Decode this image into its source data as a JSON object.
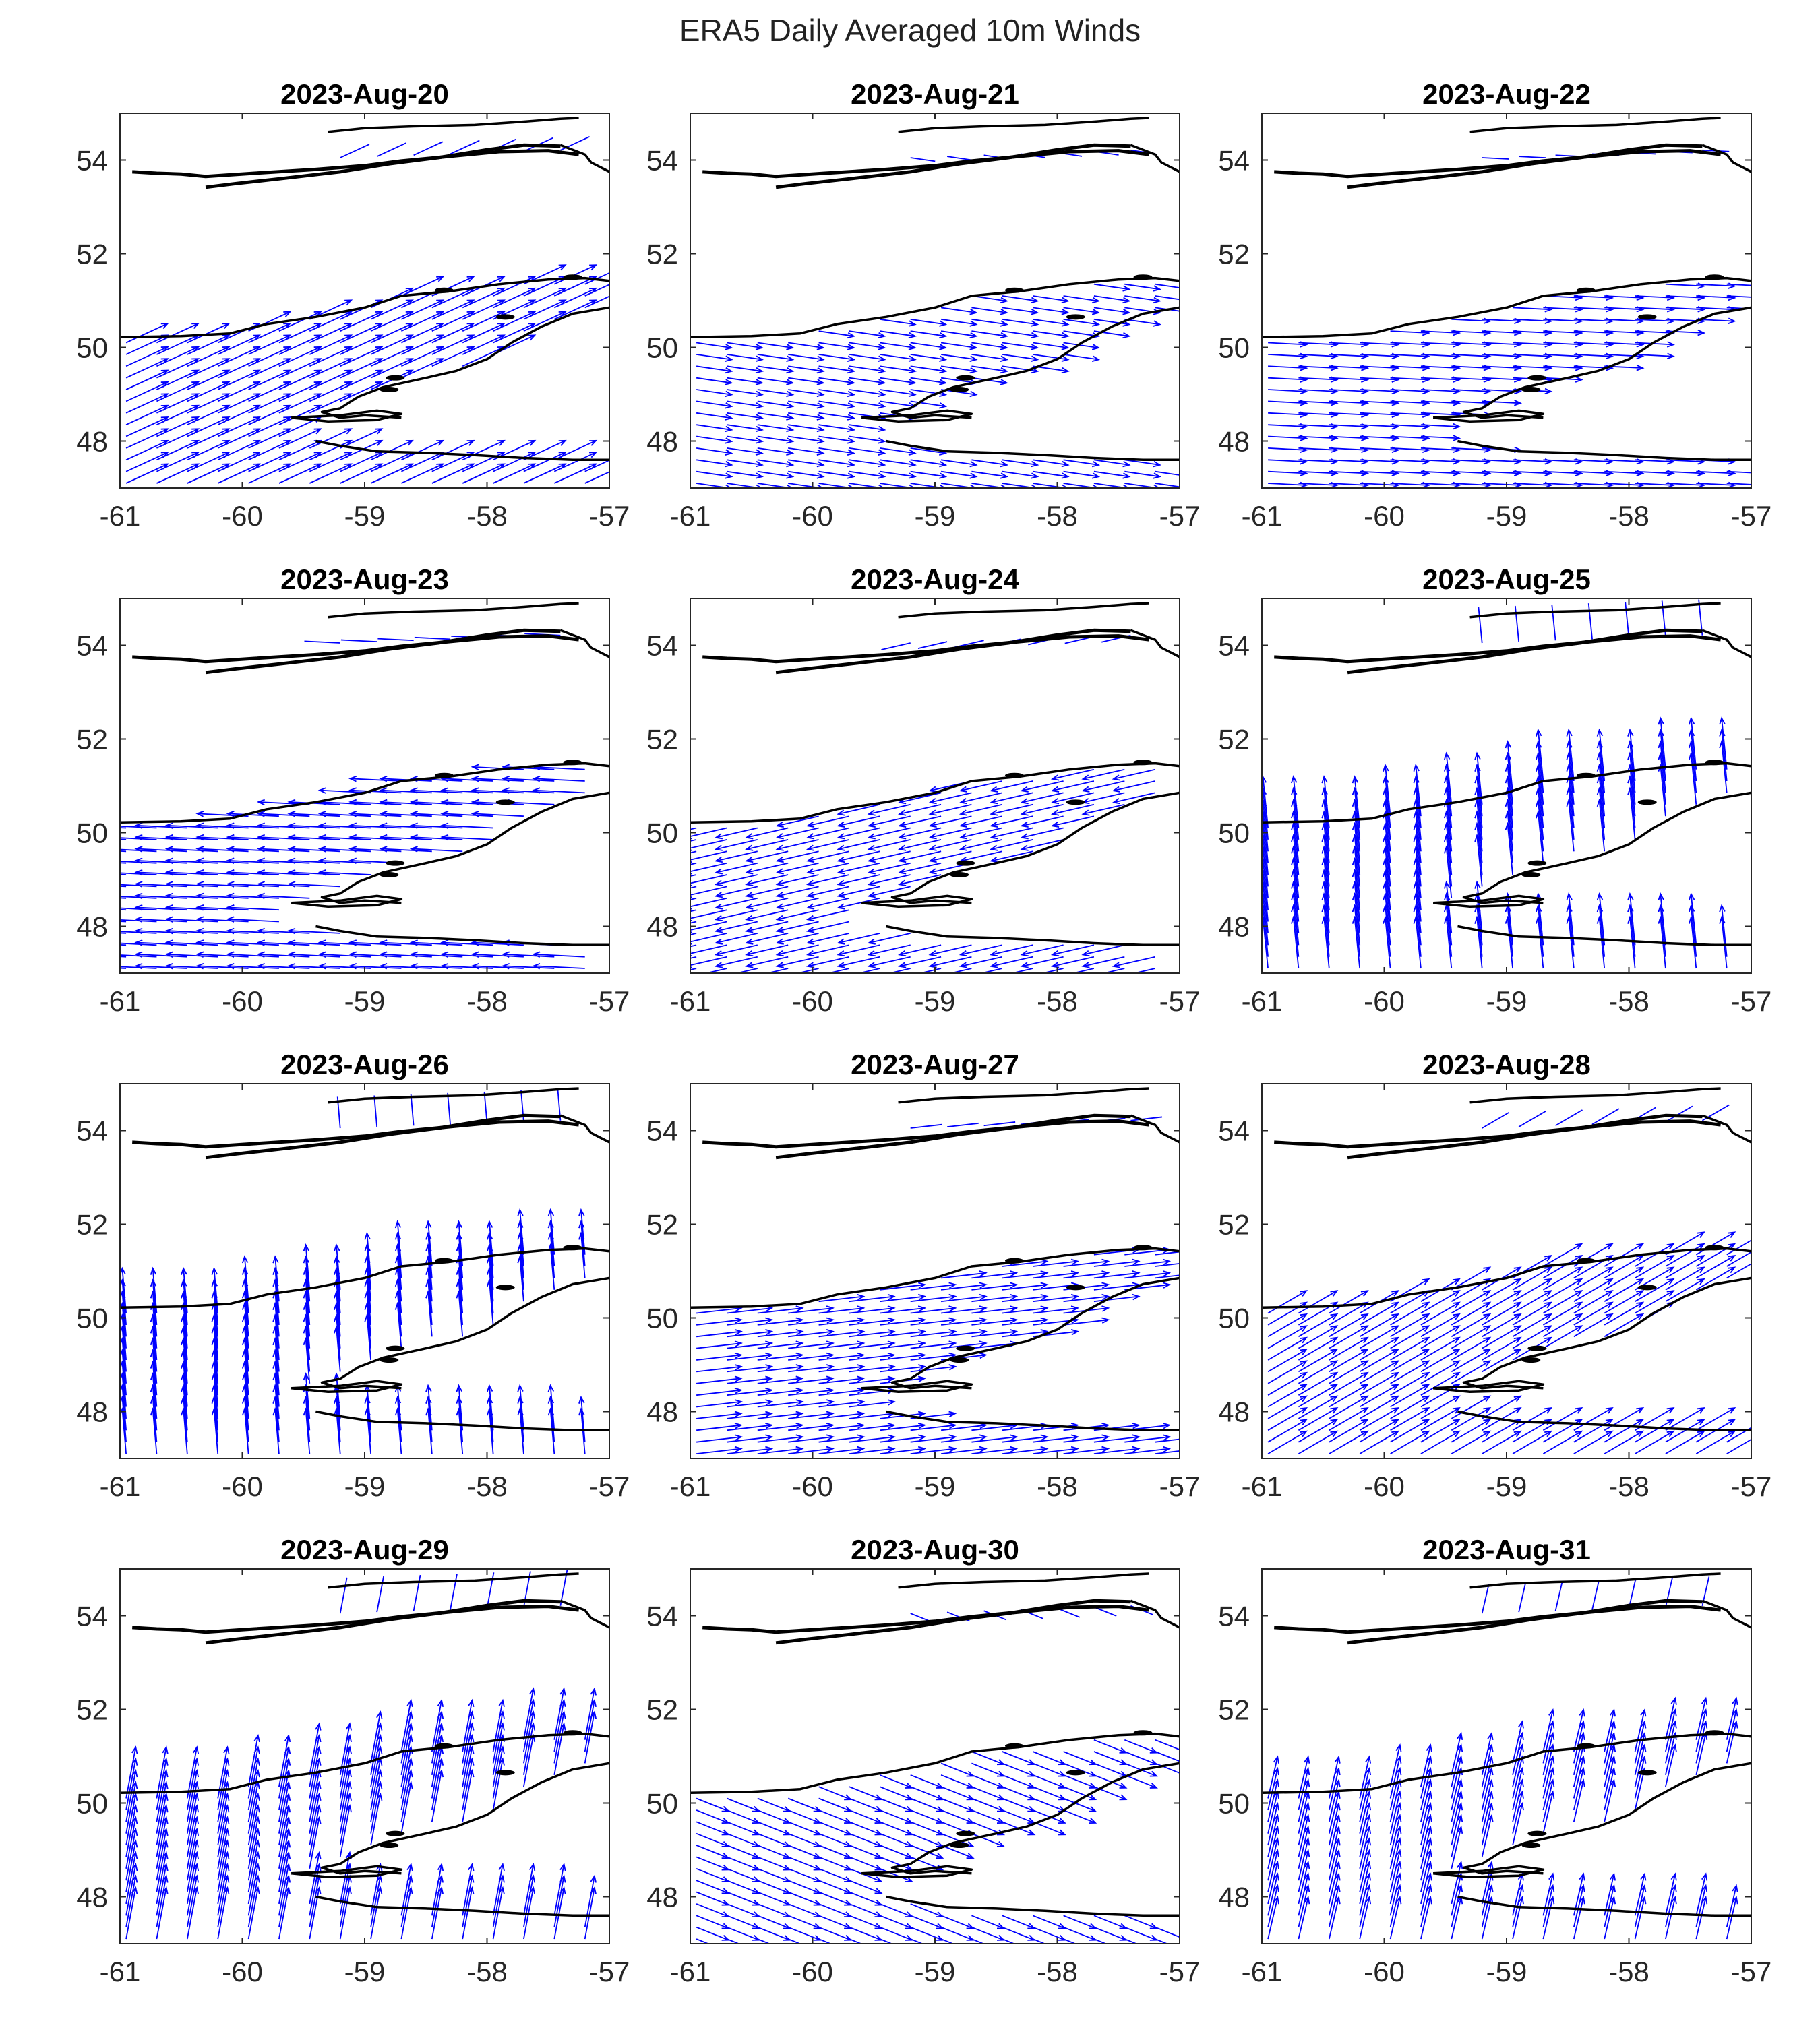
{
  "figure": {
    "title": "ERA5 Daily Averaged 10m Winds"
  },
  "chart_data": [
    {
      "type": "vector-field",
      "title": "2023-Aug-20",
      "xlim": [
        -61,
        -57
      ],
      "ylim": [
        47,
        55
      ],
      "xticks": [
        -61,
        -60,
        -59,
        -58,
        -57
      ],
      "yticks": [
        48,
        50,
        52,
        54
      ],
      "wind": {
        "direction": "east-northeast",
        "u": 6.5,
        "v": 3.0
      },
      "coastline_color": "#000000",
      "arrow_color": "#0000FF"
    },
    {
      "type": "vector-field",
      "title": "2023-Aug-21",
      "xlim": [
        -61,
        -57
      ],
      "ylim": [
        47,
        55
      ],
      "xticks": [
        -61,
        -60,
        -59,
        -58,
        -57
      ],
      "yticks": [
        48,
        50,
        52,
        54
      ],
      "wind": {
        "direction": "east-southeast",
        "u": 5.5,
        "v": -0.8
      },
      "coastline_color": "#000000",
      "arrow_color": "#0000FF"
    },
    {
      "type": "vector-field",
      "title": "2023-Aug-22",
      "xlim": [
        -61,
        -57
      ],
      "ylim": [
        47,
        55
      ],
      "xticks": [
        -61,
        -60,
        -59,
        -58,
        -57
      ],
      "yticks": [
        48,
        50,
        52,
        54
      ],
      "wind": {
        "direction": "east",
        "u": 6.0,
        "v": -0.3
      },
      "coastline_color": "#000000",
      "arrow_color": "#0000FF"
    },
    {
      "type": "vector-field",
      "title": "2023-Aug-23",
      "xlim": [
        -61,
        -57
      ],
      "ylim": [
        47,
        55
      ],
      "xticks": [
        -61,
        -60,
        -59,
        -58,
        -57
      ],
      "yticks": [
        48,
        50,
        52,
        54
      ],
      "wind": {
        "direction": "west",
        "u": -8.0,
        "v": 0.4
      },
      "coastline_color": "#000000",
      "arrow_color": "#0000FF"
    },
    {
      "type": "vector-field",
      "title": "2023-Aug-24",
      "xlim": [
        -61,
        -57
      ],
      "ylim": [
        47,
        55
      ],
      "xticks": [
        -61,
        -60,
        -59,
        -58,
        -57
      ],
      "yticks": [
        48,
        50,
        52,
        54
      ],
      "wind": {
        "direction": "west-southwest",
        "u": -6.5,
        "v": -1.5
      },
      "coastline_color": "#000000",
      "arrow_color": "#0000FF"
    },
    {
      "type": "vector-field",
      "title": "2023-Aug-25",
      "xlim": [
        -61,
        -57
      ],
      "ylim": [
        47,
        55
      ],
      "xticks": [
        -61,
        -60,
        -59,
        -58,
        -57
      ],
      "yticks": [
        48,
        50,
        52,
        54
      ],
      "wind": {
        "direction": "north",
        "u": -0.8,
        "v": 8.0
      },
      "coastline_color": "#000000",
      "arrow_color": "#0000FF"
    },
    {
      "type": "vector-field",
      "title": "2023-Aug-26",
      "xlim": [
        -61,
        -57
      ],
      "ylim": [
        47,
        55
      ],
      "xticks": [
        -61,
        -60,
        -59,
        -58,
        -57
      ],
      "yticks": [
        48,
        50,
        52,
        54
      ],
      "wind": {
        "direction": "north",
        "u": -0.6,
        "v": 7.0
      },
      "coastline_color": "#000000",
      "arrow_color": "#0000FF"
    },
    {
      "type": "vector-field",
      "title": "2023-Aug-27",
      "xlim": [
        -61,
        -57
      ],
      "ylim": [
        47,
        55
      ],
      "xticks": [
        -61,
        -60,
        -59,
        -58,
        -57
      ],
      "yticks": [
        48,
        50,
        52,
        54
      ],
      "wind": {
        "direction": "east",
        "u": 7.0,
        "v": 0.8
      },
      "coastline_color": "#000000",
      "arrow_color": "#0000FF"
    },
    {
      "type": "vector-field",
      "title": "2023-Aug-28",
      "xlim": [
        -61,
        -57
      ],
      "ylim": [
        47,
        55
      ],
      "xticks": [
        -61,
        -60,
        -59,
        -58,
        -57
      ],
      "yticks": [
        48,
        50,
        52,
        54
      ],
      "wind": {
        "direction": "northeast",
        "u": 6.0,
        "v": 3.5
      },
      "coastline_color": "#000000",
      "arrow_color": "#0000FF"
    },
    {
      "type": "vector-field",
      "title": "2023-Aug-29",
      "xlim": [
        -61,
        -57
      ],
      "ylim": [
        47,
        55
      ],
      "xticks": [
        -61,
        -60,
        -59,
        -58,
        -57
      ],
      "yticks": [
        48,
        50,
        52,
        54
      ],
      "wind": {
        "direction": "north-northeast",
        "u": 1.5,
        "v": 8.0
      },
      "coastline_color": "#000000",
      "arrow_color": "#0000FF"
    },
    {
      "type": "vector-field",
      "title": "2023-Aug-30",
      "xlim": [
        -61,
        -57
      ],
      "ylim": [
        47,
        55
      ],
      "xticks": [
        -61,
        -60,
        -59,
        -58,
        -57
      ],
      "yticks": [
        48,
        50,
        52,
        54
      ],
      "wind": {
        "direction": "east-southeast",
        "u": 5.0,
        "v": -2.0
      },
      "coastline_color": "#000000",
      "arrow_color": "#0000FF"
    },
    {
      "type": "vector-field",
      "title": "2023-Aug-31",
      "xlim": [
        -61,
        -57
      ],
      "ylim": [
        47,
        55
      ],
      "xticks": [
        -61,
        -60,
        -59,
        -58,
        -57
      ],
      "yticks": [
        48,
        50,
        52,
        54
      ],
      "wind": {
        "direction": "north-northeast",
        "u": 1.5,
        "v": 6.5
      },
      "coastline_color": "#000000",
      "arrow_color": "#0000FF"
    }
  ]
}
